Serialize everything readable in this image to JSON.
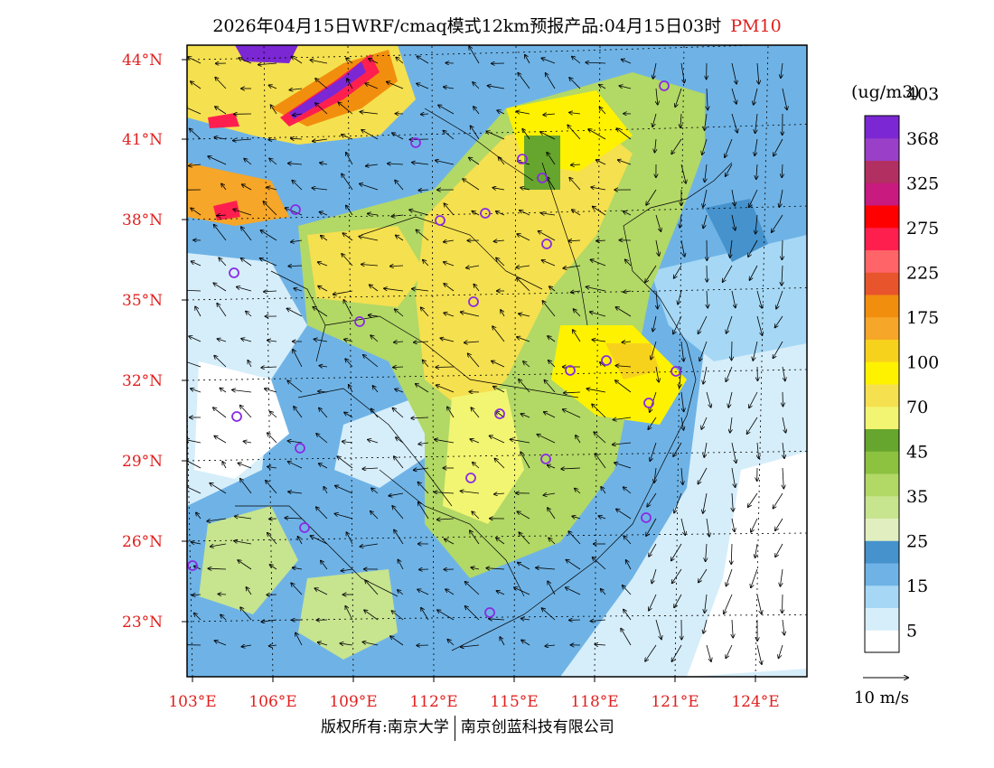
{
  "header": {
    "title": "2026年04月15日WRF/cmaq模式12km预报产品:04月15日03时",
    "pollutant": "PM10"
  },
  "map": {
    "latitude_labels": [
      "44°N",
      "41°N",
      "38°N",
      "35°N",
      "32°N",
      "29°N",
      "26°N",
      "23°N"
    ],
    "longitude_labels": [
      "103°E",
      "106°E",
      "109°E",
      "112°E",
      "115°E",
      "118°E",
      "121°E",
      "124°E"
    ],
    "station_markers": [
      "station",
      "station",
      "station",
      "station",
      "station",
      "station",
      "station",
      "station",
      "station",
      "station",
      "station",
      "station",
      "station",
      "station",
      "station",
      "station",
      "station",
      "station",
      "station",
      "station",
      "station",
      "station",
      "station",
      "station"
    ],
    "colors": {
      "border": "#000000",
      "label": "#e0201e",
      "station": "#8a2be2"
    }
  },
  "colorbar": {
    "unit": "(ug/m3)",
    "colors": [
      "#ffffff",
      "#d6eefa",
      "#a6d8f5",
      "#6fb3e6",
      "#4592cd",
      "#e1efc0",
      "#c7e48f",
      "#b2d866",
      "#8cc240",
      "#66a62e",
      "#f2f571",
      "#f5e04f",
      "#fff200",
      "#f7d21d",
      "#f6a628",
      "#f28e0e",
      "#e8552c",
      "#ff6468",
      "#ff1f4f",
      "#ff0000",
      "#c81a7f",
      "#b23061",
      "#9a3fc7",
      "#7b27d4"
    ],
    "tick_labels": [
      "5",
      "15",
      "25",
      "35",
      "45",
      "70",
      "100",
      "175",
      "225",
      "275",
      "325",
      "368",
      "403"
    ]
  },
  "wind_scale": {
    "label": "10 m/s"
  },
  "footer": {
    "left": "版权所有:南京大学",
    "right": "南京创蓝科技有限公司"
  }
}
